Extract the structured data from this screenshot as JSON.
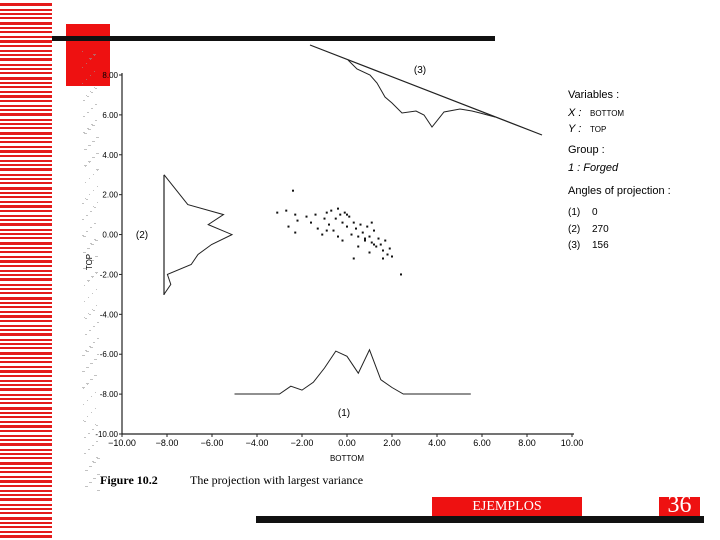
{
  "footer": {
    "label": "EJEMPLOS",
    "page_number": "36"
  },
  "figure": {
    "caption_number": "Figure 10.2",
    "caption_text": "The projection with largest variance",
    "legend": {
      "variables_title": "Variables :",
      "x_label": "X :",
      "x_value": "BOTTOM",
      "y_label": "Y :",
      "y_value": "TOP",
      "group_title": "Group :",
      "group_item": "1 : Forged",
      "angles_title": "Angles of projection :",
      "angles": [
        {
          "id": "(1)",
          "value": "0"
        },
        {
          "id": "(2)",
          "value": "270"
        },
        {
          "id": "(3)",
          "value": "156"
        }
      ]
    },
    "projection_labels": [
      "(1)",
      "(2)",
      "(3)"
    ]
  },
  "chart_data": {
    "type": "scatter",
    "xlabel": "BOTTOM",
    "ylabel": "TOP",
    "xlim": [
      -10,
      10
    ],
    "ylim": [
      -10,
      8
    ],
    "x_ticks": [
      "-10.00",
      "-8.00",
      "-6.00",
      "-4.00",
      "-2.00",
      "0.00",
      "2.00",
      "4.00",
      "6.00",
      "8.00",
      "10.00"
    ],
    "y_ticks": [
      "8.00",
      "6.00",
      "4.00",
      "2.00",
      "0.00",
      "-2.00",
      "-4.00",
      "-6.00",
      "-8.00",
      "-10.00"
    ],
    "points": [
      [
        -2.4,
        2.2
      ],
      [
        -3.1,
        1.1
      ],
      [
        -2.7,
        1.2
      ],
      [
        -2.3,
        1.0
      ],
      [
        -2.2,
        0.7
      ],
      [
        -2.6,
        0.4
      ],
      [
        -2.3,
        0.1
      ],
      [
        -1.8,
        0.9
      ],
      [
        -1.6,
        0.6
      ],
      [
        -1.4,
        1.0
      ],
      [
        -1.3,
        0.3
      ],
      [
        -1.0,
        0.8
      ],
      [
        -0.9,
        1.1
      ],
      [
        -0.8,
        0.5
      ],
      [
        -0.7,
        1.2
      ],
      [
        -0.6,
        0.2
      ],
      [
        -0.5,
        0.8
      ],
      [
        -0.4,
        1.3
      ],
      [
        -0.3,
        1.0
      ],
      [
        -0.2,
        0.6
      ],
      [
        -0.1,
        1.1
      ],
      [
        0.0,
        0.4
      ],
      [
        0.1,
        0.9
      ],
      [
        0.2,
        0.0
      ],
      [
        0.3,
        0.6
      ],
      [
        0.4,
        0.3
      ],
      [
        0.5,
        -0.1
      ],
      [
        0.6,
        0.5
      ],
      [
        0.7,
        0.1
      ],
      [
        0.8,
        -0.3
      ],
      [
        0.9,
        0.4
      ],
      [
        1.0,
        -0.1
      ],
      [
        1.1,
        -0.4
      ],
      [
        1.2,
        0.2
      ],
      [
        1.3,
        -0.6
      ],
      [
        1.4,
        -0.2
      ],
      [
        1.5,
        -0.5
      ],
      [
        1.6,
        -0.8
      ],
      [
        1.7,
        -0.3
      ],
      [
        1.8,
        -1.0
      ],
      [
        1.9,
        -0.7
      ],
      [
        2.0,
        -1.1
      ],
      [
        0.5,
        -0.6
      ],
      [
        -0.2,
        -0.3
      ],
      [
        1.0,
        -0.9
      ],
      [
        2.4,
        -2.0
      ],
      [
        1.2,
        -0.5
      ],
      [
        0.8,
        -0.2
      ],
      [
        -1.1,
        0.0
      ],
      [
        0.3,
        -1.2
      ],
      [
        1.6,
        -1.2
      ],
      [
        -0.4,
        -0.1
      ],
      [
        0.0,
        1.0
      ],
      [
        -0.9,
        0.2
      ],
      [
        1.1,
        0.6
      ]
    ],
    "projection_1": {
      "x": [
        -5.0,
        -3.0,
        -2.5,
        -2.0,
        -1.5,
        -1.0,
        -0.5,
        0.0,
        0.5,
        1.0,
        1.5,
        2.0,
        2.5,
        5.5
      ],
      "h": [
        0,
        0,
        0.6,
        0.3,
        0.9,
        2.0,
        3.3,
        2.9,
        1.6,
        3.4,
        1.1,
        0.5,
        0,
        0
      ]
    },
    "projection_2": {
      "y": [
        -3.0,
        -2.5,
        -2.0,
        -1.5,
        -1.0,
        -0.5,
        0.0,
        0.5,
        1.0,
        1.5,
        3.0
      ],
      "h": [
        0,
        0.4,
        0.2,
        1.6,
        2.0,
        2.8,
        4.0,
        2.6,
        3.5,
        1.4,
        0
      ]
    }
  }
}
